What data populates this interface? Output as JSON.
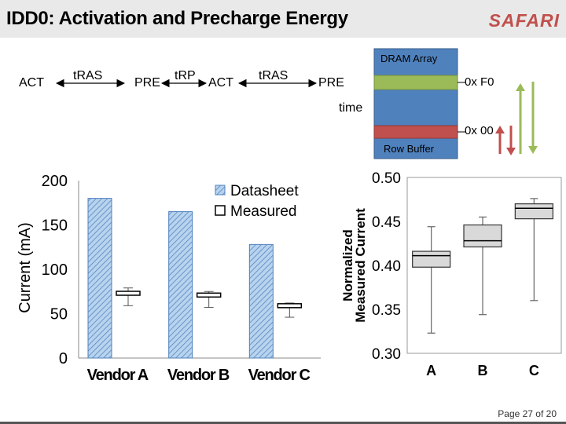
{
  "title": "IDD0: Activation and Precharge Energy",
  "logo": "SAFARI",
  "timeline": {
    "act1": "ACT",
    "tras1": "tRAS",
    "pre1": "PRE",
    "trp": "tRP",
    "act2": "ACT",
    "tras2": "tRAS",
    "pre2": "PRE",
    "time": "time"
  },
  "dram": {
    "array_label": "DRAM Array",
    "buffer_label": "Row Buffer",
    "top_value": "0x F0",
    "bottom_value": "0x 00",
    "colors": {
      "array": "#4f81bd",
      "top_row": "#9bbb59",
      "buffer": "#c0504d"
    }
  },
  "page_number": "Page 27 of 20",
  "chart_data": [
    {
      "type": "bar",
      "categories": [
        "Vendor A",
        "Vendor B",
        "Vendor C"
      ],
      "series": [
        {
          "name": "Datasheet",
          "values": [
            180,
            165,
            128
          ]
        },
        {
          "name": "Measured",
          "values": [
            73,
            71,
            59
          ],
          "whisker_low": [
            59,
            57,
            46
          ],
          "whisker_high": [
            79,
            75,
            62
          ]
        }
      ],
      "ylabel": "Current (mA)",
      "yticks": [
        "0",
        "50",
        "100",
        "150",
        "200"
      ],
      "ylim": [
        0,
        200
      ],
      "legend": "top-right",
      "colors": {
        "Datasheet": "#9cc3e5",
        "Measured": "#ffffff"
      }
    },
    {
      "type": "box",
      "categories": [
        "A",
        "B",
        "C"
      ],
      "boxes": [
        {
          "min": 0.323,
          "q1": 0.398,
          "median": 0.411,
          "q3": 0.416,
          "max": 0.444
        },
        {
          "min": 0.344,
          "q1": 0.421,
          "median": 0.428,
          "q3": 0.446,
          "max": 0.455
        },
        {
          "min": 0.36,
          "q1": 0.453,
          "median": 0.465,
          "q3": 0.47,
          "max": 0.476
        }
      ],
      "ylabel": "Normalized Measured Current",
      "yticks": [
        "0.30",
        "0.35",
        "0.40",
        "0.45",
        "0.50"
      ],
      "ylim": [
        0.3,
        0.5
      ],
      "grid": false
    }
  ]
}
